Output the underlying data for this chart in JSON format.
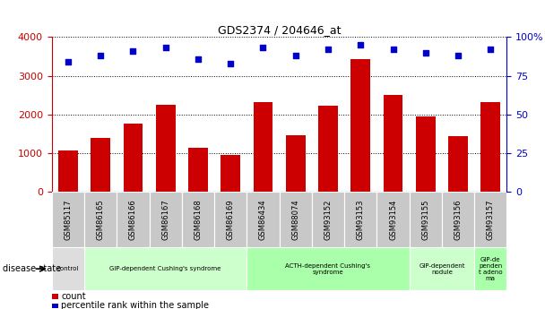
{
  "title": "GDS2374 / 204646_at",
  "samples": [
    "GSM85117",
    "GSM86165",
    "GSM86166",
    "GSM86167",
    "GSM86168",
    "GSM86169",
    "GSM86434",
    "GSM88074",
    "GSM93152",
    "GSM93153",
    "GSM93154",
    "GSM93155",
    "GSM93156",
    "GSM93157"
  ],
  "counts": [
    1060,
    1380,
    1760,
    2250,
    1130,
    960,
    2320,
    1470,
    2230,
    3430,
    2500,
    1940,
    1440,
    2320
  ],
  "percentiles": [
    84,
    88,
    91,
    93,
    86,
    83,
    93,
    88,
    92,
    95,
    92,
    90,
    88,
    92
  ],
  "bar_color": "#cc0000",
  "dot_color": "#0000cc",
  "ylim_left": [
    0,
    4000
  ],
  "ylim_right": [
    0,
    100
  ],
  "yticks_left": [
    0,
    1000,
    2000,
    3000,
    4000
  ],
  "yticks_right": [
    0,
    25,
    50,
    75,
    100
  ],
  "yticklabels_right": [
    "0",
    "25",
    "50",
    "75",
    "100%"
  ],
  "groups": [
    {
      "label": "control",
      "start": 0,
      "end": 1,
      "color": "#dddddd"
    },
    {
      "label": "GIP-dependent Cushing's syndrome",
      "start": 1,
      "end": 6,
      "color": "#ccffcc"
    },
    {
      "label": "ACTH-dependent Cushing's\nsyndrome",
      "start": 6,
      "end": 11,
      "color": "#aaffaa"
    },
    {
      "label": "GIP-dependent\nnodule",
      "start": 11,
      "end": 13,
      "color": "#ccffcc"
    },
    {
      "label": "GIP-de\npenden\nt adeno\nma",
      "start": 13,
      "end": 14,
      "color": "#aaffaa"
    }
  ],
  "disease_state_label": "disease state",
  "bg_color": "#ffffff",
  "tick_area_color": "#c8c8c8"
}
